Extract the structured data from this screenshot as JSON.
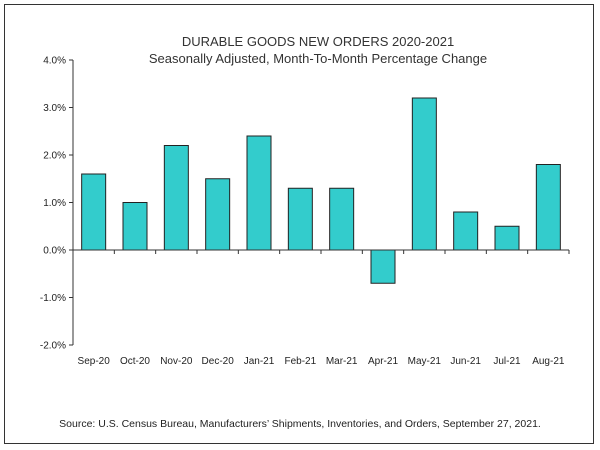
{
  "chart_data": {
    "type": "bar",
    "title": "DURABLE GOODS NEW ORDERS 2020-2021",
    "subtitle": "Seasonally Adjusted,  Month-To-Month Percentage Change",
    "categories": [
      "Sep-20",
      "Oct-20",
      "Nov-20",
      "Dec-20",
      "Jan-21",
      "Feb-21",
      "Mar-21",
      "Apr-21",
      "May-21",
      "Jun-21",
      "Jul-21",
      "Aug-21"
    ],
    "values": [
      1.6,
      1.0,
      2.2,
      1.5,
      2.4,
      1.3,
      1.3,
      -0.7,
      3.2,
      0.8,
      0.5,
      1.8
    ],
    "ylim": [
      -2.0,
      4.0
    ],
    "yticks": [
      -2.0,
      -1.0,
      0.0,
      1.0,
      2.0,
      3.0,
      4.0
    ],
    "ytick_labels": [
      "-2.0%",
      "-1.0%",
      "0.0%",
      "1.0%",
      "2.0%",
      "3.0%",
      "4.0%"
    ],
    "grid": false,
    "bar_color": "#33CCCC",
    "bar_edge_color": "#222222",
    "source": "Source: U.S. Census Bureau, Manufacturers’ Shipments, Inventories, and Orders, September 27, 2021."
  }
}
